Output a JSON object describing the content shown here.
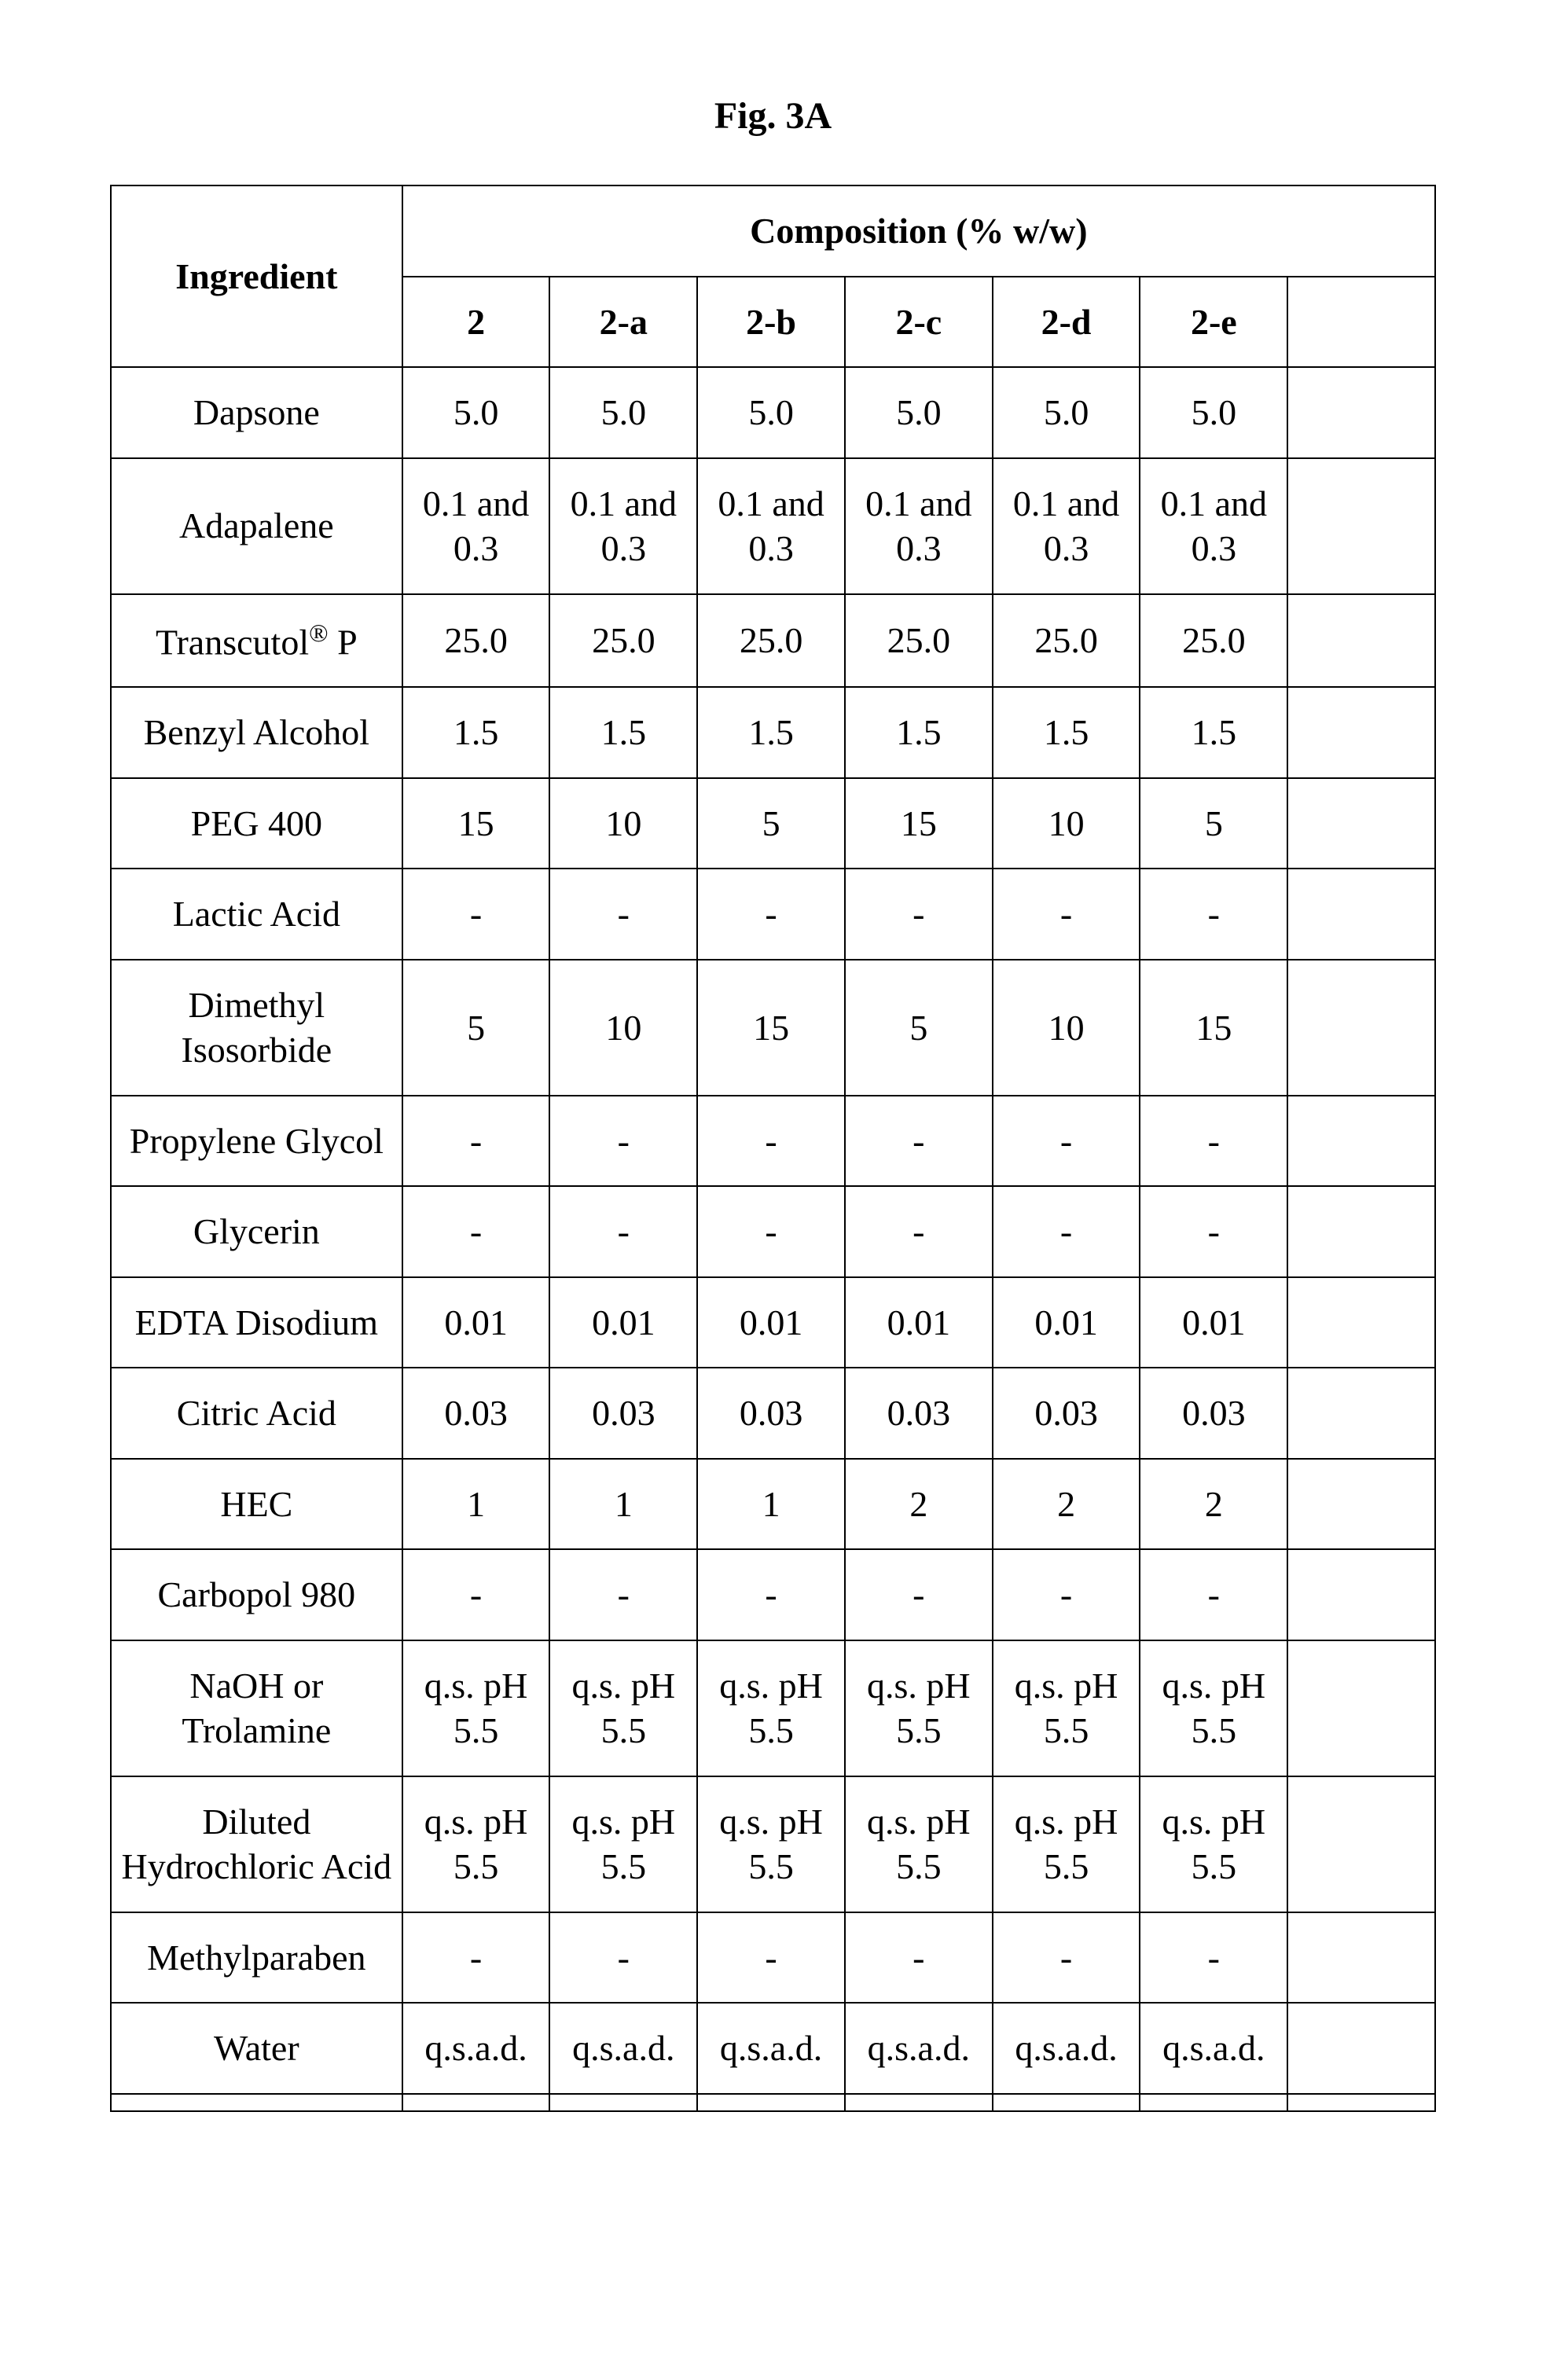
{
  "figure_label": "Fig. 3A",
  "table": {
    "header_ingredient": "Ingredient",
    "header_composition": "Composition (% w/w)",
    "col_ingredient_width_pct": 22,
    "data_col_count": 7,
    "border_color": "#000000",
    "background_color": "#ffffff",
    "font_family": "Times New Roman",
    "header_fontsize_pt": 36,
    "cell_fontsize_pt": 34,
    "columns": [
      "2",
      "2-a",
      "2-b",
      "2-c",
      "2-d",
      "2-e",
      ""
    ],
    "rows": [
      {
        "ingredient": "Dapsone",
        "values": [
          "5.0",
          "5.0",
          "5.0",
          "5.0",
          "5.0",
          "5.0",
          ""
        ]
      },
      {
        "ingredient": "Adapalene",
        "values": [
          "0.1 and 0.3",
          "0.1 and 0.3",
          "0.1 and 0.3",
          "0.1 and 0.3",
          "0.1 and 0.3",
          "0.1 and 0.3",
          ""
        ]
      },
      {
        "ingredient_html": "Transcutol<sup>®</sup> P",
        "ingredient": "Transcutol® P",
        "values": [
          "25.0",
          "25.0",
          "25.0",
          "25.0",
          "25.0",
          "25.0",
          ""
        ]
      },
      {
        "ingredient": "Benzyl Alcohol",
        "values": [
          "1.5",
          "1.5",
          "1.5",
          "1.5",
          "1.5",
          "1.5",
          ""
        ]
      },
      {
        "ingredient": "PEG 400",
        "values": [
          "15",
          "10",
          "5",
          "15",
          "10",
          "5",
          ""
        ]
      },
      {
        "ingredient": "Lactic Acid",
        "values": [
          "-",
          "-",
          "-",
          "-",
          "-",
          "-",
          ""
        ]
      },
      {
        "ingredient": "Dimethyl Isosorbide",
        "values": [
          "5",
          "10",
          "15",
          "5",
          "10",
          "15",
          ""
        ]
      },
      {
        "ingredient": "Propylene Glycol",
        "values": [
          "-",
          "-",
          "-",
          "-",
          "-",
          "-",
          ""
        ]
      },
      {
        "ingredient": "Glycerin",
        "values": [
          "-",
          "-",
          "-",
          "-",
          "-",
          "-",
          ""
        ]
      },
      {
        "ingredient": "EDTA Disodium",
        "values": [
          "0.01",
          "0.01",
          "0.01",
          "0.01",
          "0.01",
          "0.01",
          ""
        ]
      },
      {
        "ingredient": "Citric Acid",
        "values": [
          "0.03",
          "0.03",
          "0.03",
          "0.03",
          "0.03",
          "0.03",
          ""
        ]
      },
      {
        "ingredient": "HEC",
        "values": [
          "1",
          "1",
          "1",
          "2",
          "2",
          "2",
          ""
        ]
      },
      {
        "ingredient": "Carbopol 980",
        "values": [
          "-",
          "-",
          "-",
          "-",
          "-",
          "-",
          ""
        ]
      },
      {
        "ingredient": "NaOH or Trolamine",
        "values": [
          "q.s. pH 5.5",
          "q.s. pH 5.5",
          "q.s. pH 5.5",
          "q.s. pH 5.5",
          "q.s. pH 5.5",
          "q.s. pH 5.5",
          ""
        ]
      },
      {
        "ingredient": "Diluted Hydrochloric Acid",
        "values": [
          "q.s. pH 5.5",
          "q.s. pH 5.5",
          "q.s. pH 5.5",
          "q.s. pH 5.5",
          "q.s. pH 5.5",
          "q.s. pH 5.5",
          ""
        ]
      },
      {
        "ingredient": "Methylparaben",
        "values": [
          "-",
          "-",
          "-",
          "-",
          "-",
          "-",
          ""
        ]
      },
      {
        "ingredient": "Water",
        "values": [
          "q.s.a.d.",
          "q.s.a.d.",
          "q.s.a.d.",
          "q.s.a.d.",
          "q.s.a.d.",
          "q.s.a.d.",
          ""
        ]
      }
    ]
  }
}
